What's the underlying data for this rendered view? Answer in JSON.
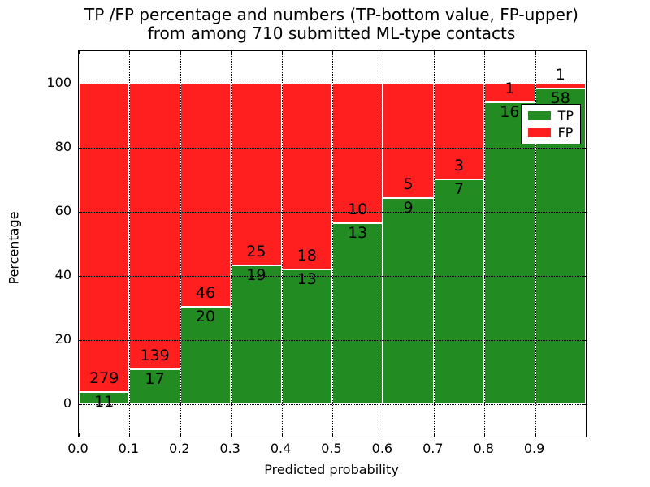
{
  "chart_data": {
    "type": "bar",
    "stacked": true,
    "normalized_to_percent": true,
    "title_line1": "TP /FP percentage and numbers (TP-bottom value, FP-upper)",
    "title_line2": "from among 710 submitted ML-type contacts",
    "xlabel": "Predicted probability",
    "ylabel": "Percentage",
    "xlim": [
      0.0,
      1.0
    ],
    "ylim": [
      -10,
      110
    ],
    "x_ticks": [
      "0.0",
      "0.1",
      "0.2",
      "0.3",
      "0.4",
      "0.5",
      "0.6",
      "0.7",
      "0.8",
      "0.9"
    ],
    "y_ticks": [
      0,
      20,
      40,
      60,
      80,
      100
    ],
    "grid": {
      "linestyle": "dotted",
      "color": "#000000",
      "drawn_over_bars": true
    },
    "series": [
      {
        "name": "TP",
        "values": [
          11,
          17,
          20,
          19,
          13,
          13,
          9,
          7,
          16,
          58
        ]
      },
      {
        "name": "FP",
        "values": [
          279,
          139,
          46,
          25,
          18,
          10,
          5,
          3,
          1,
          1
        ]
      }
    ],
    "bins": [
      {
        "x_start": 0.0,
        "x_end": 0.1,
        "tp": 11,
        "fp": 279
      },
      {
        "x_start": 0.1,
        "x_end": 0.2,
        "tp": 17,
        "fp": 139
      },
      {
        "x_start": 0.2,
        "x_end": 0.3,
        "tp": 20,
        "fp": 46
      },
      {
        "x_start": 0.3,
        "x_end": 0.4,
        "tp": 19,
        "fp": 25
      },
      {
        "x_start": 0.4,
        "x_end": 0.5,
        "tp": 13,
        "fp": 18
      },
      {
        "x_start": 0.5,
        "x_end": 0.6,
        "tp": 13,
        "fp": 10
      },
      {
        "x_start": 0.6,
        "x_end": 0.7,
        "tp": 9,
        "fp": 5
      },
      {
        "x_start": 0.7,
        "x_end": 0.8,
        "tp": 7,
        "fp": 3
      },
      {
        "x_start": 0.8,
        "x_end": 0.9,
        "tp": 16,
        "fp": 1
      },
      {
        "x_start": 0.9,
        "x_end": 1.0,
        "tp": 58,
        "fp": 1,
        "fp_label_hidden_by_legend": true
      }
    ],
    "legend": {
      "position": "upper right",
      "entries": [
        {
          "label": "TP",
          "color": "#228B22"
        },
        {
          "label": "FP",
          "color": "#FF1F1F"
        }
      ]
    }
  },
  "colors": {
    "tp_bar": "#228B22",
    "fp_bar": "#FF1F1F",
    "bar_edge": "#FFFFFF",
    "grid": "#000000",
    "text": "#000000",
    "background": "#FFFFFF"
  }
}
